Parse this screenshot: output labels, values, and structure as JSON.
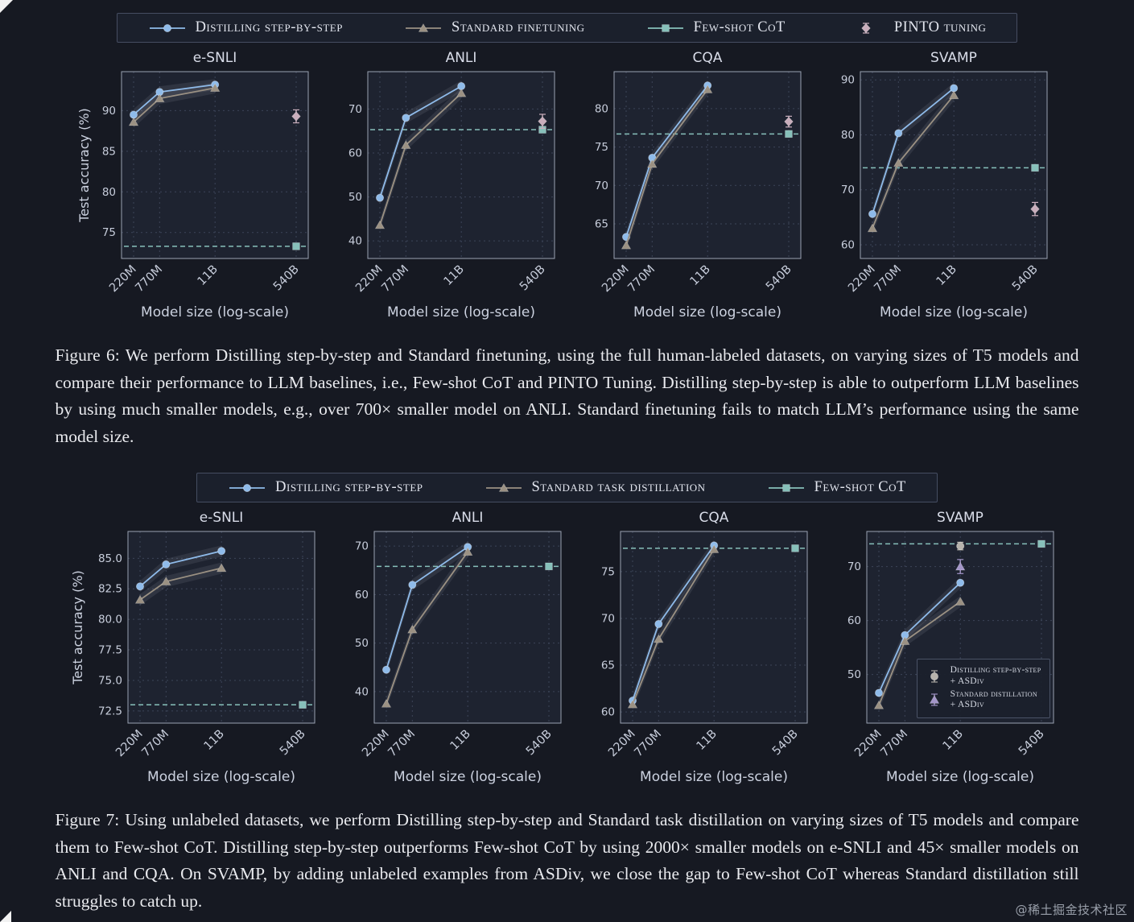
{
  "page": {
    "watermark": "@稀土掘金技术社区"
  },
  "palette": {
    "distill": "#8fbbea",
    "standard": "#9b9183",
    "fewshot": "#87c0ba",
    "pinto": "#c9aebc",
    "asdiv_distill": "#b7b3ac",
    "asdiv_standard": "#a496c9",
    "grid": "#3c4458",
    "spine": "#9aa2b2",
    "panel": "#1e2330",
    "tick_text": "#c7cddb",
    "label_text": "#ccd2e0",
    "title_text": "#d9dde9"
  },
  "figure6": {
    "legend": [
      {
        "label": "Distilling step-by-step",
        "marker": "circle",
        "color": "distill",
        "line": "solid"
      },
      {
        "label": "Standard finetuning",
        "marker": "triangle",
        "color": "standard",
        "line": "solid"
      },
      {
        "label": "Few-shot CoT",
        "marker": "square",
        "color": "fewshot",
        "line": "solid"
      },
      {
        "label": "PINTO tuning",
        "marker": "diamond",
        "color": "pinto",
        "line": "none"
      }
    ],
    "xlabel": "Model size (log-scale)",
    "ylabel": "Test accuracy (%)",
    "x_categories": [
      "220M",
      "770M",
      "11B",
      "540B"
    ],
    "caption": "Figure 6: We perform Distilling step-by-step and Standard finetuning, using the full human-labeled datasets, on varying sizes of T5 models and compare their performance to LLM baselines, i.e., Few-shot CoT and PINTO Tuning. Distilling step-by-step is able to outperform LLM baselines by using much smaller models, e.g., over 700× smaller model on ANLI. Standard finetuning fails to match LLM’s performance using the same model size.",
    "charts": [
      {
        "title": "e-SNLI",
        "type": "line",
        "ylim": [
          71.8,
          94.8
        ],
        "yticks": [
          75,
          80,
          85,
          90
        ],
        "ytick_labels": [
          "75",
          "80",
          "85",
          "90"
        ],
        "series": [
          {
            "name": "Distilling step-by-step",
            "marker": "circle",
            "color": "distill",
            "band": true,
            "values": [
              89.5,
              92.3,
              93.2
            ]
          },
          {
            "name": "Standard finetuning",
            "marker": "triangle",
            "color": "standard",
            "band": true,
            "values": [
              88.6,
              91.5,
              92.8
            ]
          }
        ],
        "baseline": {
          "name": "Few-shot CoT",
          "value": 73.3,
          "color": "fewshot",
          "marker": "square"
        },
        "points": [
          {
            "name": "PINTO tuning",
            "x_index": 3,
            "value": 89.3,
            "err": 0.8,
            "color": "pinto",
            "marker": "diamond"
          }
        ]
      },
      {
        "title": "ANLI",
        "type": "line",
        "ylim": [
          36,
          78.5
        ],
        "yticks": [
          40,
          50,
          60,
          70
        ],
        "ytick_labels": [
          "40",
          "50",
          "60",
          "70"
        ],
        "series": [
          {
            "name": "Distilling step-by-step",
            "marker": "circle",
            "color": "distill",
            "band": true,
            "values": [
              49.8,
              68.0,
              75.2
            ]
          },
          {
            "name": "Standard finetuning",
            "marker": "triangle",
            "color": "standard",
            "band": true,
            "values": [
              43.6,
              61.8,
              73.6
            ]
          }
        ],
        "baseline": {
          "name": "Few-shot CoT",
          "value": 65.3,
          "color": "fewshot",
          "marker": "square"
        },
        "points": [
          {
            "name": "PINTO tuning",
            "x_index": 3,
            "value": 67.2,
            "err": 1.6,
            "color": "pinto",
            "marker": "diamond"
          }
        ]
      },
      {
        "title": "CQA",
        "type": "line",
        "ylim": [
          60.5,
          84.8
        ],
        "yticks": [
          65,
          70,
          75,
          80
        ],
        "ytick_labels": [
          "65",
          "70",
          "75",
          "80"
        ],
        "series": [
          {
            "name": "Distilling step-by-step",
            "marker": "circle",
            "color": "distill",
            "band": true,
            "values": [
              63.3,
              73.6,
              83.0
            ]
          },
          {
            "name": "Standard finetuning",
            "marker": "triangle",
            "color": "standard",
            "band": true,
            "values": [
              62.2,
              72.8,
              82.5
            ]
          }
        ],
        "baseline": {
          "name": "Few-shot CoT",
          "value": 76.7,
          "color": "fewshot",
          "marker": "square"
        },
        "points": [
          {
            "name": "PINTO tuning",
            "x_index": 3,
            "value": 78.3,
            "err": 0.7,
            "color": "pinto",
            "marker": "diamond"
          }
        ]
      },
      {
        "title": "SVAMP",
        "type": "line",
        "ylim": [
          57.5,
          91.5
        ],
        "yticks": [
          60,
          70,
          80,
          90
        ],
        "ytick_labels": [
          "60",
          "70",
          "80",
          "90"
        ],
        "series": [
          {
            "name": "Distilling step-by-step",
            "marker": "circle",
            "color": "distill",
            "band": true,
            "values": [
              65.6,
              80.3,
              88.5
            ]
          },
          {
            "name": "Standard finetuning",
            "marker": "triangle",
            "color": "standard",
            "band": true,
            "values": [
              63.0,
              74.9,
              87.2
            ]
          }
        ],
        "baseline": {
          "name": "Few-shot CoT",
          "value": 74.0,
          "color": "fewshot",
          "marker": "square"
        },
        "points": [
          {
            "name": "PINTO tuning",
            "x_index": 3,
            "value": 66.5,
            "err": 1.2,
            "color": "pinto",
            "marker": "diamond"
          }
        ]
      }
    ]
  },
  "figure7": {
    "legend": [
      {
        "label": "Distilling step-by-step",
        "marker": "circle",
        "color": "distill",
        "line": "solid"
      },
      {
        "label": "Standard task distillation",
        "marker": "triangle",
        "color": "standard",
        "line": "solid"
      },
      {
        "label": "Few-shot CoT",
        "marker": "square",
        "color": "fewshot",
        "line": "solid"
      }
    ],
    "xlabel": "Model size (log-scale)",
    "ylabel": "Test accuracy (%)",
    "x_categories": [
      "220M",
      "770M",
      "11B",
      "540B"
    ],
    "caption": "Figure 7: Using unlabeled datasets, we perform Distilling step-by-step and Standard task distillation on varying sizes of T5 models and compare them to Few-shot CoT. Distilling step-by-step outperforms Few-shot CoT by using 2000× smaller models on e-SNLI and 45× smaller models on ANLI and CQA. On SVAMP, by adding unlabeled examples from ASDiv, we close the gap to Few-shot CoT whereas Standard distillation still struggles to catch up.",
    "charts": [
      {
        "title": "e-SNLI",
        "type": "line",
        "ylim": [
          71.5,
          87.2
        ],
        "yticks": [
          72.5,
          75.0,
          77.5,
          80.0,
          82.5,
          85.0
        ],
        "ytick_labels": [
          "72.5",
          "75.0",
          "77.5",
          "80.0",
          "82.5",
          "85.0"
        ],
        "series": [
          {
            "name": "Distilling step-by-step",
            "marker": "circle",
            "color": "distill",
            "band": true,
            "values": [
              82.7,
              84.5,
              85.6
            ]
          },
          {
            "name": "Standard task distillation",
            "marker": "triangle",
            "color": "standard",
            "band": true,
            "values": [
              81.6,
              83.1,
              84.2
            ]
          }
        ],
        "baseline": {
          "name": "Few-shot CoT",
          "value": 73.0,
          "color": "fewshot",
          "marker": "square"
        },
        "points": []
      },
      {
        "title": "ANLI",
        "type": "line",
        "ylim": [
          33.5,
          73
        ],
        "yticks": [
          40,
          50,
          60,
          70
        ],
        "ytick_labels": [
          "40",
          "50",
          "60",
          "70"
        ],
        "series": [
          {
            "name": "Distilling step-by-step",
            "marker": "circle",
            "color": "distill",
            "band": true,
            "values": [
              44.5,
              62.0,
              69.8
            ]
          },
          {
            "name": "Standard task distillation",
            "marker": "triangle",
            "color": "standard",
            "band": true,
            "values": [
              37.5,
              52.8,
              68.8
            ]
          }
        ],
        "baseline": {
          "name": "Few-shot CoT",
          "value": 65.8,
          "color": "fewshot",
          "marker": "square"
        },
        "points": []
      },
      {
        "title": "CQA",
        "type": "line",
        "ylim": [
          58.8,
          79.3
        ],
        "yticks": [
          60,
          65,
          70,
          75
        ],
        "ytick_labels": [
          "60",
          "65",
          "70",
          "75"
        ],
        "series": [
          {
            "name": "Distilling step-by-step",
            "marker": "circle",
            "color": "distill",
            "band": true,
            "values": [
              61.2,
              69.4,
              77.8
            ]
          },
          {
            "name": "Standard task distillation",
            "marker": "triangle",
            "color": "standard",
            "band": true,
            "values": [
              60.8,
              67.8,
              77.4
            ]
          }
        ],
        "baseline": {
          "name": "Few-shot CoT",
          "value": 77.5,
          "color": "fewshot",
          "marker": "square"
        },
        "points": []
      },
      {
        "title": "SVAMP",
        "type": "line",
        "ylim": [
          41,
          76.5
        ],
        "yticks": [
          50,
          60,
          70
        ],
        "ytick_labels": [
          "50",
          "60",
          "70"
        ],
        "series": [
          {
            "name": "Distilling step-by-step",
            "marker": "circle",
            "color": "distill",
            "band": true,
            "values": [
              46.6,
              57.3,
              67.0
            ]
          },
          {
            "name": "Standard task distillation",
            "marker": "triangle",
            "color": "standard",
            "band": true,
            "values": [
              44.3,
              56.2,
              63.5
            ]
          }
        ],
        "baseline": {
          "name": "Few-shot CoT",
          "value": 74.2,
          "color": "fewshot",
          "marker": "square"
        },
        "points": [
          {
            "name": "Distilling step-by-step + ASDiv",
            "x_index": 2,
            "value": 73.8,
            "err": 0.7,
            "color": "asdiv_distill",
            "marker": "circle"
          },
          {
            "name": "Standard distillation + ASDiv",
            "x_index": 2,
            "value": 70.0,
            "err": 1.3,
            "color": "asdiv_standard",
            "marker": "triangle"
          }
        ],
        "inner_legend": [
          {
            "line1": "Distilling step-by-step",
            "line2": "+ ASDiv",
            "marker": "circle",
            "color": "asdiv_distill"
          },
          {
            "line1": "Standard distillation",
            "line2": "+ ASDiv",
            "marker": "triangle",
            "color": "asdiv_standard"
          }
        ]
      }
    ]
  }
}
